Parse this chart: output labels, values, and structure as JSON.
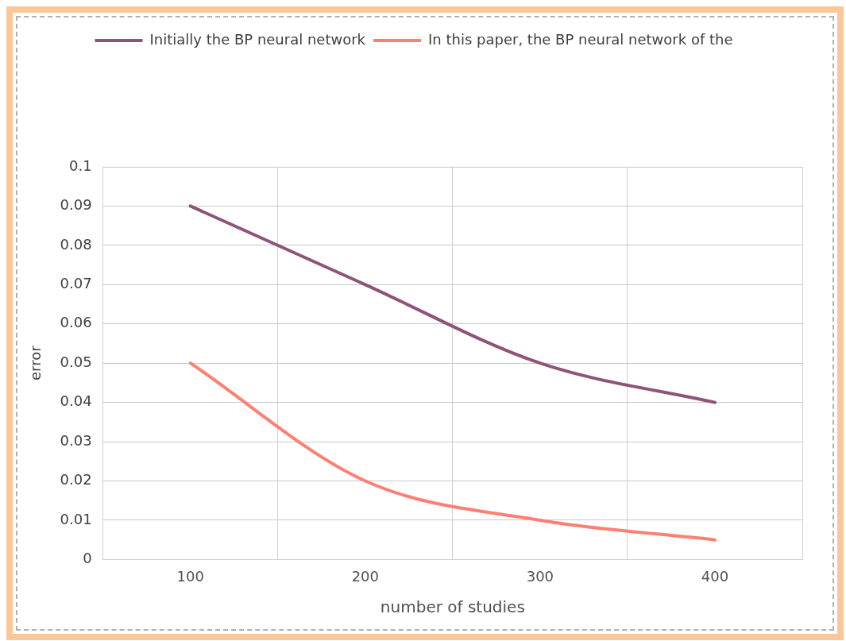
{
  "chart_data": {
    "type": "line",
    "xlabel": "number of studies",
    "ylabel": "error",
    "categories": [
      "100",
      "200",
      "300",
      "400"
    ],
    "series": [
      {
        "name": "Initially the BP neural network",
        "color": "#8e5478",
        "values": [
          0.09,
          0.07,
          0.05,
          0.04
        ]
      },
      {
        "name": "In this paper, the BP neural network of the",
        "color": "#ff7f73",
        "values": [
          0.05,
          0.02,
          0.01,
          0.005
        ]
      }
    ],
    "ylim": [
      0,
      0.1
    ],
    "yticks": [
      0,
      0.01,
      0.02,
      0.03,
      0.04,
      0.05,
      0.06,
      0.07,
      0.08,
      0.09,
      0.1
    ],
    "grid": true,
    "legend": "top",
    "marker": "none",
    "line_style": "solid"
  }
}
